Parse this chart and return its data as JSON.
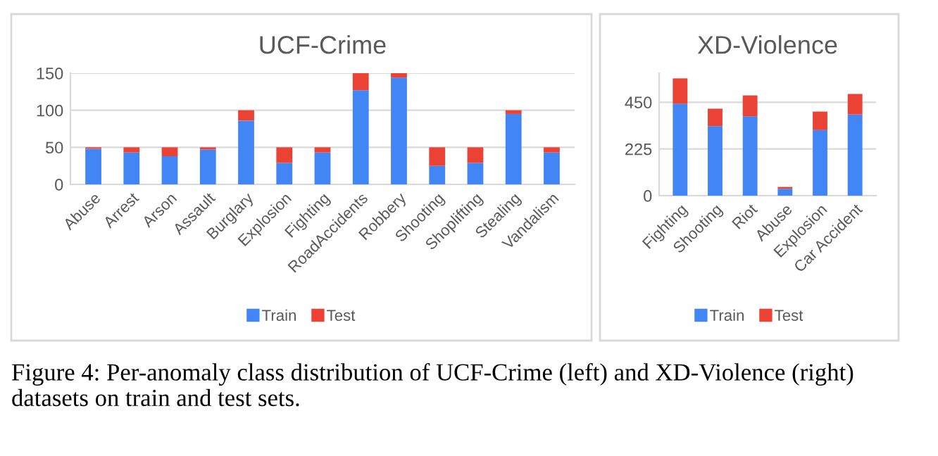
{
  "chart_data": [
    {
      "type": "bar",
      "title": "UCF-Crime",
      "stacked": true,
      "categories": [
        "Abuse",
        "Arrest",
        "Arson",
        "Assault",
        "Burglary",
        "Explosion",
        "Fighting",
        "RoadAccidents",
        "Robbery",
        "Shooting",
        "Shoplifting",
        "Stealing",
        "Vandalism"
      ],
      "series": [
        {
          "name": "Train",
          "color": "#4285f4",
          "values": [
            48,
            43,
            38,
            47,
            86,
            29,
            43,
            127,
            144,
            25,
            29,
            95,
            43
          ]
        },
        {
          "name": "Test",
          "color": "#ea4335",
          "values": [
            2,
            7,
            12,
            3,
            14,
            21,
            7,
            23,
            6,
            25,
            21,
            5,
            7
          ]
        }
      ],
      "ylim": [
        0,
        150
      ],
      "yticks": [
        0,
        50,
        100,
        150
      ],
      "grid": "y",
      "legend": "bottom",
      "annotations": [
        "Figure 4: Per-anomaly class distribution of UCF-Crime (left) and XD-Violence (right) datasets on train and test sets."
      ]
    },
    {
      "type": "bar",
      "title": "XD-Violence",
      "stacked": true,
      "categories": [
        "Fighting",
        "Shooting",
        "Riot",
        "Abuse",
        "Explosion",
        "Car Accident"
      ],
      "series": [
        {
          "name": "Train",
          "color": "#4285f4",
          "values": [
            443,
            335,
            382,
            33,
            316,
            391
          ]
        },
        {
          "name": "Test",
          "color": "#ea4335",
          "values": [
            122,
            84,
            101,
            9,
            89,
            99
          ]
        }
      ],
      "ylim": [
        0,
        590
      ],
      "yticks": [
        0,
        225,
        450
      ],
      "grid": "y",
      "legend": "bottom"
    }
  ]
}
